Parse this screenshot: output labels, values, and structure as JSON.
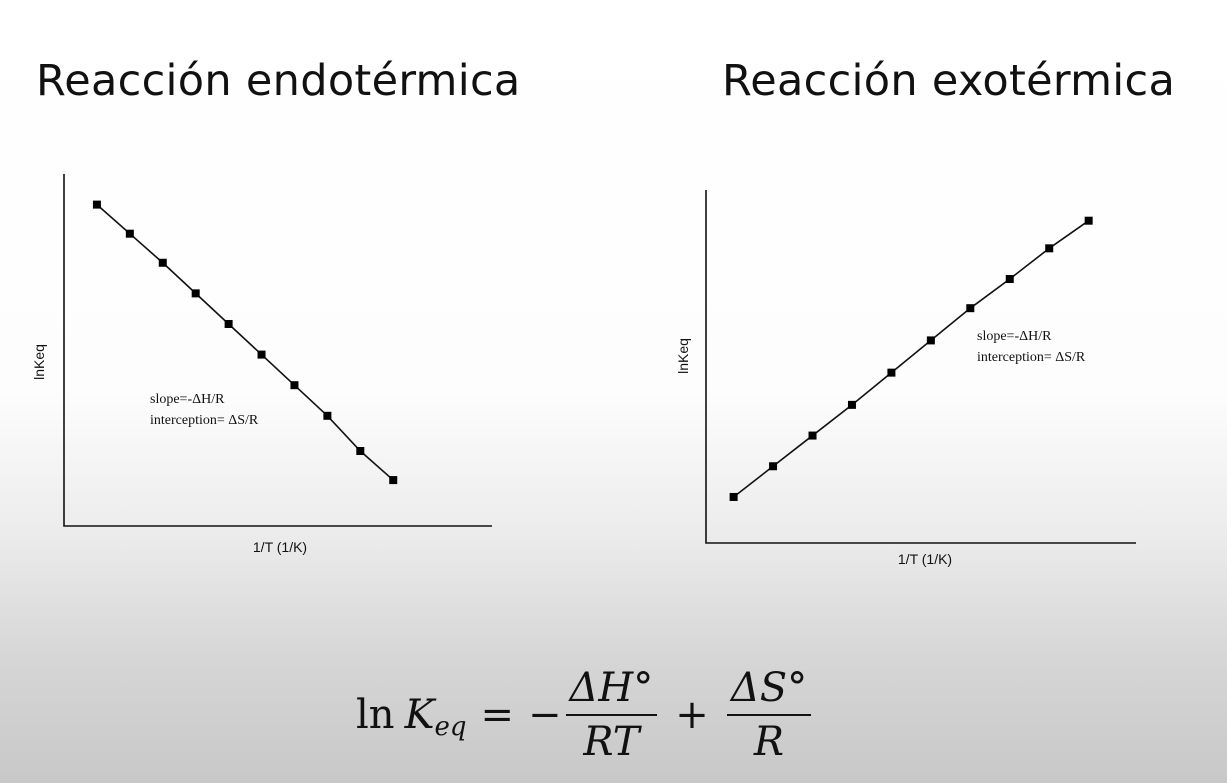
{
  "titles": {
    "left": "Reacción endotérmica",
    "right": "Reacción exotérmica"
  },
  "formula": {
    "ln": "ln",
    "K": "K",
    "sub": "eq",
    "equals": "=",
    "minus": "−",
    "num1": "ΔH°",
    "den1": "RT",
    "plus": "+",
    "num2": "ΔS°",
    "den2": "R"
  },
  "chart_data": [
    {
      "type": "line",
      "xlabel": "1/T (1/K)",
      "ylabel": "lnKeq",
      "annotations": [
        "slope=-ΔH/R",
        "interception= ΔS/R"
      ],
      "x": [
        1,
        2,
        3,
        4,
        5,
        6,
        7,
        8,
        9,
        10
      ],
      "series": [
        {
          "values": [
            10,
            9.05,
            8.1,
            7.1,
            6.1,
            5.1,
            4.1,
            3.1,
            1.95,
            1
          ]
        }
      ],
      "xlim": [
        0,
        13
      ],
      "ylim": [
        -0.5,
        11
      ],
      "grid": false,
      "markers": "square",
      "color": "#000000"
    },
    {
      "type": "line",
      "xlabel": "1/T (1/K)",
      "ylabel": "lnKeq",
      "annotations": [
        "slope=-ΔH/R",
        "interception= ΔS/R"
      ],
      "x": [
        1,
        2,
        3,
        4,
        5,
        6,
        7,
        8,
        9,
        10
      ],
      "series": [
        {
          "values": [
            1,
            2,
            3,
            4,
            5.05,
            6.1,
            7.15,
            8.1,
            9.1,
            10
          ]
        }
      ],
      "xlim": [
        0.3,
        11.2
      ],
      "ylim": [
        -0.5,
        11
      ],
      "grid": false,
      "markers": "square",
      "color": "#000000"
    }
  ]
}
